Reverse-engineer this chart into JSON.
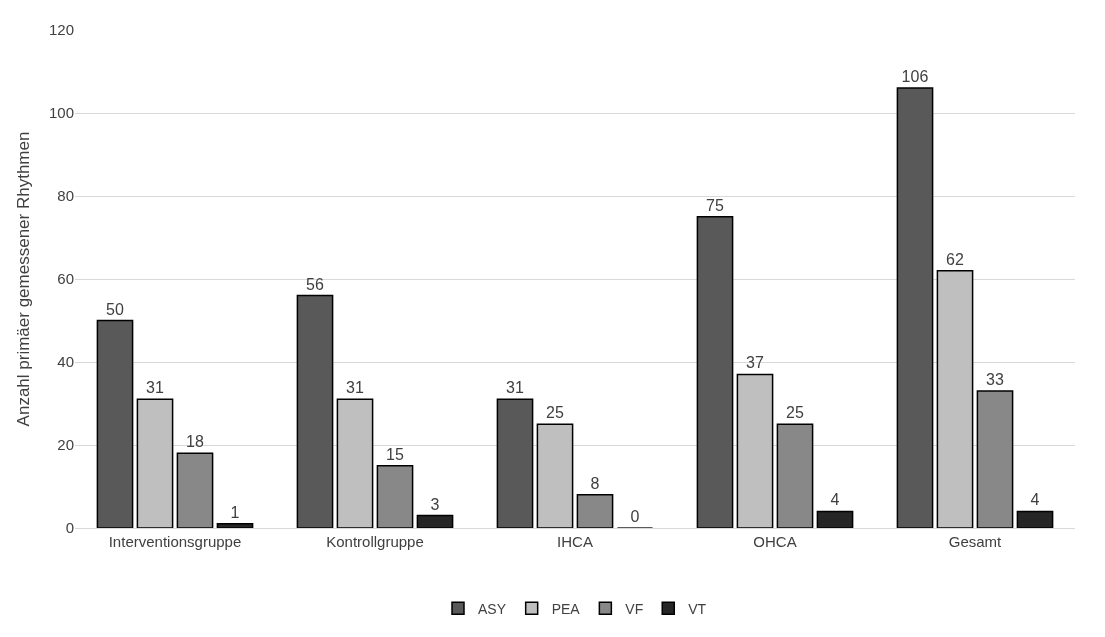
{
  "chart_data": {
    "type": "bar",
    "ylabel": "Anzahl primäer gemessener Rhythmen",
    "categories": [
      "Interventionsgruppe",
      "Kontrollgruppe",
      "IHCA",
      "OHCA",
      "Gesamt"
    ],
    "series": [
      {
        "name": "ASY",
        "color": "#595959",
        "values": [
          50,
          56,
          31,
          75,
          106
        ]
      },
      {
        "name": "PEA",
        "color": "#bfbfbf",
        "values": [
          31,
          31,
          25,
          37,
          62
        ]
      },
      {
        "name": "VF",
        "color": "#888888",
        "values": [
          18,
          15,
          8,
          25,
          33
        ]
      },
      {
        "name": "VT",
        "color": "#262626",
        "values": [
          1,
          3,
          0,
          4,
          4
        ]
      }
    ],
    "ylim": [
      0,
      120
    ],
    "yticks": [
      0,
      20,
      40,
      60,
      80,
      100,
      120
    ],
    "grid": "y",
    "legend": "bottom",
    "data_labels": true
  }
}
